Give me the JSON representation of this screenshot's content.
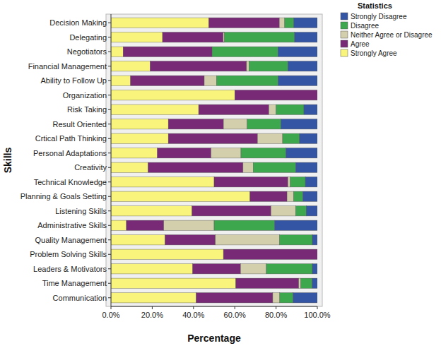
{
  "chart_data": {
    "type": "bar",
    "orientation": "horizontal",
    "stacked": true,
    "legend": "right",
    "legend_title": "Statistics",
    "x_label": "Percentage",
    "y_label": "Skills",
    "categories": [
      "Decision Making",
      "Delegating",
      "Negotiators",
      "Financial Management",
      "Ability to Follow Up",
      "Organization",
      "Risk Taking",
      "Result Oriented",
      "Crtical Path Thinking",
      "Personal Adaptations",
      "Creativity",
      "Technical Knowledge",
      "Planning & Goals Setting",
      "Listening Skills",
      "Administrative Skills",
      "Quality Management",
      "Problem Solving Skills",
      "Leaders & Motivators",
      "Time Management",
      "Communication"
    ],
    "xlim": [
      0,
      100
    ],
    "xticks": [
      {
        "value": 0,
        "label": "0.0%"
      },
      {
        "value": 20,
        "label": "20.0%"
      },
      {
        "value": 40,
        "label": "40.0%"
      },
      {
        "value": 60,
        "label": "60.0%"
      },
      {
        "value": 80,
        "label": "80.0%"
      },
      {
        "value": 100,
        "label": "100.0%"
      }
    ],
    "series": [
      {
        "name": "Strongly Agree",
        "color": "#f9f57c",
        "values": [
          47.4,
          25,
          5.9,
          19,
          9.5,
          60,
          42.5,
          27.8,
          27.8,
          22.5,
          18,
          50,
          67.4,
          39.3,
          7.5,
          26.2,
          54.5,
          39.6,
          60.5,
          41.3
        ]
      },
      {
        "name": "Agree",
        "color": "#782a76",
        "values": [
          34.2,
          29.4,
          43.1,
          46.7,
          35.7,
          40,
          34,
          26.7,
          43.2,
          26,
          46,
          35.7,
          17.9,
          38.2,
          18.1,
          24.4,
          45.5,
          23.2,
          30.5,
          37.1
        ]
      },
      {
        "name": "Neither Agree or Disagree",
        "color": "#d3cfad",
        "values": [
          2.6,
          0.6,
          0,
          1.2,
          6,
          0,
          3.5,
          11.5,
          12.2,
          14.5,
          5,
          1.2,
          3.2,
          12,
          24.4,
          31.1,
          0,
          12.5,
          1,
          3.4
        ]
      },
      {
        "name": "Disagree",
        "color": "#3da74e",
        "values": [
          4.4,
          34,
          31.9,
          18.8,
          29.8,
          0,
          13.5,
          16.3,
          8.2,
          21.8,
          20.5,
          7.3,
          4.5,
          5.1,
          29.3,
          15.9,
          0,
          22.3,
          5.5,
          6.5
        ]
      },
      {
        "name": "Strongly Disagree",
        "color": "#3455a4",
        "values": [
          11.4,
          11,
          19.1,
          14.3,
          19,
          0,
          6.5,
          17.7,
          8.6,
          15.2,
          10.5,
          5.8,
          7,
          5.4,
          20.7,
          2.4,
          0,
          2.4,
          2.5,
          11.7
        ]
      }
    ]
  }
}
